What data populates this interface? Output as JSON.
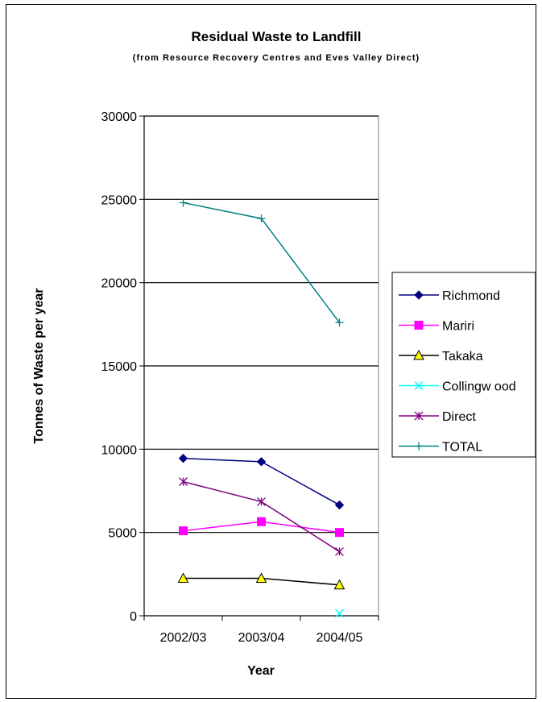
{
  "chart_data": {
    "type": "line",
    "title": "Residual Waste to Landfill",
    "subtitle": "(from Resource Recovery Centres and Eves Valley Direct)",
    "xlabel": "Year",
    "ylabel": "Tonnes of Waste per year",
    "categories": [
      "2002/03",
      "2003/04",
      "2004/05"
    ],
    "ylim": [
      0,
      30000
    ],
    "yticks": [
      0,
      5000,
      10000,
      15000,
      20000,
      25000,
      30000
    ],
    "grid": "horizontal",
    "legend_position": "right",
    "series": [
      {
        "name": "Richmond",
        "values": [
          9450,
          9250,
          6650
        ],
        "color": "#000080",
        "marker": "diamond"
      },
      {
        "name": "Mariri",
        "values": [
          5100,
          5650,
          5000
        ],
        "color": "#ff00ff",
        "marker": "square"
      },
      {
        "name": "Takaka",
        "values": [
          2250,
          2250,
          1850
        ],
        "color": "#000000",
        "marker": "triangle",
        "marker_fill": "#ffff00"
      },
      {
        "name": "Collingw ood",
        "values": [
          null,
          null,
          150
        ],
        "color": "#00ffff",
        "marker": "x"
      },
      {
        "name": "Direct",
        "values": [
          8050,
          6850,
          3850
        ],
        "color": "#800080",
        "marker": "star"
      },
      {
        "name": "TOTAL",
        "values": [
          24800,
          23850,
          17600
        ],
        "color": "#008080",
        "marker": "plus"
      }
    ]
  }
}
